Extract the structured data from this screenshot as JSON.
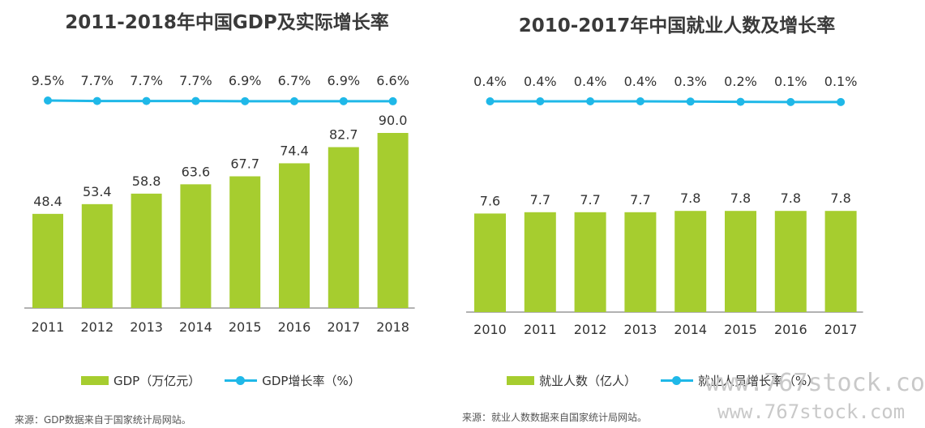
{
  "colors": {
    "bar": "#a6cd2f",
    "line": "#1fb8e8",
    "axis": "#999999",
    "text": "#333333"
  },
  "chart_data": [
    {
      "type": "bar",
      "title": "2011-2018年中国GDP及实际增长率",
      "categories": [
        "2011",
        "2012",
        "2013",
        "2014",
        "2015",
        "2016",
        "2017",
        "2018"
      ],
      "series": [
        {
          "name": "GDP（万亿元）",
          "type": "bar",
          "values": [
            48.4,
            53.4,
            58.8,
            63.6,
            67.7,
            74.4,
            82.7,
            90.0
          ],
          "labels": [
            "48.4",
            "53.4",
            "58.8",
            "63.6",
            "67.7",
            "74.4",
            "82.7",
            "90.0"
          ]
        },
        {
          "name": "GDP增长率（%）",
          "type": "line",
          "values": [
            9.5,
            7.7,
            7.7,
            7.7,
            6.9,
            6.7,
            6.9,
            6.6
          ],
          "labels": [
            "9.5%",
            "7.7%",
            "7.7%",
            "7.7%",
            "6.9%",
            "6.7%",
            "6.9%",
            "6.6%"
          ]
        }
      ],
      "ylim": [
        0,
        100
      ],
      "grid": false,
      "legend_position": "bottom",
      "source": "来源：GDP数据来自于国家统计局网站。"
    },
    {
      "type": "bar",
      "title": "2010-2017年中国就业人数及增长率",
      "categories": [
        "2010",
        "2011",
        "2012",
        "2013",
        "2014",
        "2015",
        "2016",
        "2017"
      ],
      "series": [
        {
          "name": "就业人数（亿人）",
          "type": "bar",
          "values": [
            7.6,
            7.7,
            7.7,
            7.7,
            7.8,
            7.8,
            7.8,
            7.8
          ],
          "labels": [
            "7.6",
            "7.7",
            "7.7",
            "7.7",
            "7.8",
            "7.8",
            "7.8",
            "7.8"
          ]
        },
        {
          "name": "就业人员增长率（%）",
          "type": "line",
          "values": [
            0.4,
            0.4,
            0.4,
            0.4,
            0.3,
            0.2,
            0.1,
            0.1
          ],
          "labels": [
            "0.4%",
            "0.4%",
            "0.4%",
            "0.4%",
            "0.3%",
            "0.2%",
            "0.1%",
            "0.1%"
          ]
        }
      ],
      "ylim": [
        0,
        10.5
      ],
      "grid": false,
      "legend_position": "bottom",
      "source": "来源：就业人数数据来自国家统计局网站。"
    }
  ],
  "watermark": {
    "line1": "www.767stock.co",
    "line2": "www.767stock.com"
  }
}
